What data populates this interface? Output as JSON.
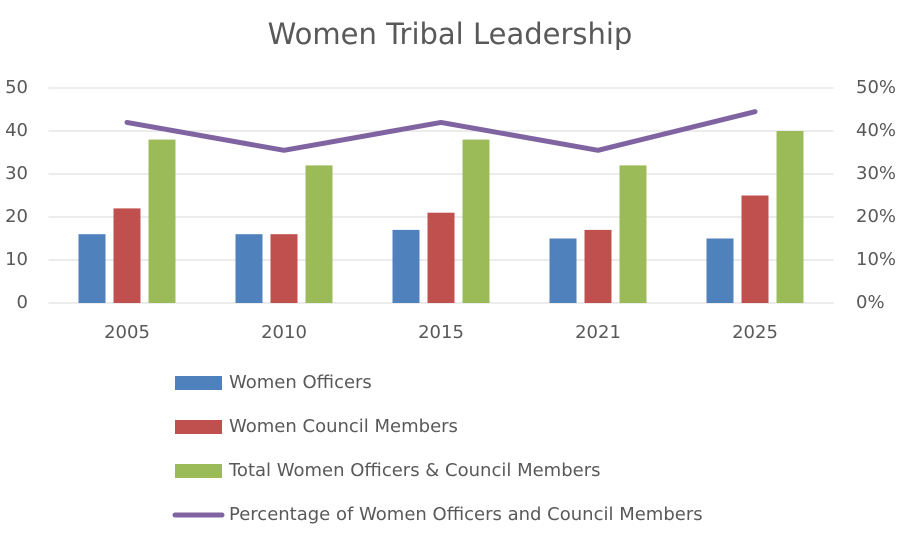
{
  "chart_data": {
    "type": "bar",
    "title": "Women Tribal Leadership",
    "categories": [
      "2005",
      "2010",
      "2015",
      "2021",
      "2025"
    ],
    "series": [
      {
        "name": "Women Officers",
        "color": "#4f81bd",
        "values": [
          16,
          16,
          17,
          15,
          15
        ]
      },
      {
        "name": "Women Council Members",
        "color": "#c0504d",
        "values": [
          22,
          16,
          21,
          17,
          25
        ]
      },
      {
        "name": "Total Women Officers & Council Members",
        "color": "#9bbb59",
        "values": [
          38,
          32,
          38,
          32,
          40
        ]
      },
      {
        "name": "Percentage of  Women Officers and Council Members",
        "color": "#8064a2",
        "type": "line",
        "axis": "y2",
        "values": [
          42,
          35.5,
          42,
          35.5,
          44.5
        ]
      }
    ],
    "ylim": [
      0,
      50
    ],
    "yticks": [
      0,
      10,
      20,
      30,
      40,
      50
    ],
    "y2lim": [
      0,
      50
    ],
    "y2ticks": [
      {
        "value": 0,
        "label": "0%"
      },
      {
        "value": 10,
        "label": "10%"
      },
      {
        "value": 20,
        "label": "20%"
      },
      {
        "value": 30,
        "label": "30%"
      },
      {
        "value": 40,
        "label": "40%"
      },
      {
        "value": 50,
        "label": "50%"
      }
    ],
    "grid": true
  }
}
